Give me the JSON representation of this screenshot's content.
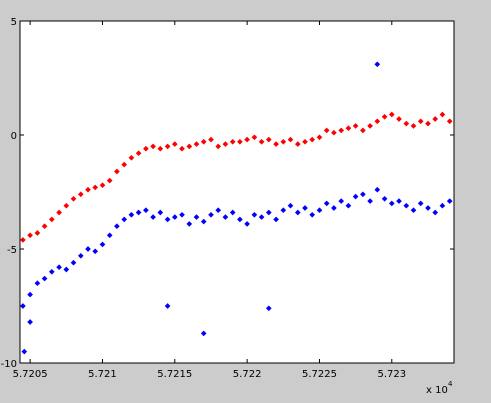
{
  "chart_data": {
    "type": "scatter",
    "title": "",
    "xlabel": "",
    "ylabel": "",
    "x_multiplier_label": "x 10",
    "x_multiplier_exponent": "4",
    "xlim": [
      57204.3,
      57234.3
    ],
    "ylim": [
      -10,
      5
    ],
    "x_ticks": [
      57205,
      57210,
      57215,
      57220,
      57225,
      57230
    ],
    "x_tick_labels": [
      "5.7205",
      "5.721",
      "5.7215",
      "5.722",
      "5.7225",
      "5.723"
    ],
    "y_ticks": [
      -10,
      -5,
      0,
      5
    ],
    "y_tick_labels": [
      "-10",
      "-5",
      "0",
      "5"
    ],
    "grid": false,
    "legend": "none",
    "background": "#ffffff",
    "figure_background": "#cccccc",
    "series": [
      {
        "color": "#ff0000",
        "x": [
          57204.5,
          57205.0,
          57205.5,
          57206.0,
          57206.5,
          57207.0,
          57207.5,
          57208.0,
          57208.5,
          57209.0,
          57209.5,
          57210.0,
          57210.5,
          57211.0,
          57211.5,
          57212.0,
          57212.5,
          57213.0,
          57213.5,
          57214.0,
          57214.5,
          57215.0,
          57215.5,
          57216.0,
          57216.5,
          57217.0,
          57217.5,
          57218.0,
          57218.5,
          57219.0,
          57219.5,
          57220.0,
          57220.5,
          57221.0,
          57221.5,
          57222.0,
          57222.5,
          57223.0,
          57223.5,
          57224.0,
          57224.5,
          57225.0,
          57225.5,
          57226.0,
          57226.5,
          57227.0,
          57227.5,
          57228.0,
          57228.5,
          57229.0,
          57229.5,
          57230.0,
          57230.5,
          57231.0,
          57231.5,
          57232.0,
          57232.5,
          57233.0,
          57233.5,
          57234.0
        ],
        "y": [
          -4.6,
          -4.4,
          -4.3,
          -4.0,
          -3.7,
          -3.4,
          -3.1,
          -2.8,
          -2.6,
          -2.4,
          -2.3,
          -2.2,
          -2.0,
          -1.6,
          -1.3,
          -1.0,
          -0.8,
          -0.6,
          -0.5,
          -0.6,
          -0.5,
          -0.4,
          -0.6,
          -0.5,
          -0.4,
          -0.3,
          -0.2,
          -0.5,
          -0.4,
          -0.3,
          -0.3,
          -0.2,
          -0.1,
          -0.3,
          -0.2,
          -0.4,
          -0.3,
          -0.2,
          -0.4,
          -0.3,
          -0.2,
          -0.1,
          0.2,
          0.1,
          0.2,
          0.3,
          0.4,
          0.2,
          0.4,
          0.6,
          0.8,
          0.9,
          0.7,
          0.5,
          0.4,
          0.6,
          0.5,
          0.7,
          0.9,
          0.6
        ]
      },
      {
        "color": "#0000ff",
        "x": [
          57204.5,
          57205.0,
          57205.5,
          57206.0,
          57206.5,
          57207.0,
          57207.5,
          57208.0,
          57208.5,
          57209.0,
          57209.5,
          57210.0,
          57210.5,
          57211.0,
          57211.5,
          57212.0,
          57212.5,
          57213.0,
          57213.5,
          57214.0,
          57214.5,
          57215.0,
          57215.5,
          57216.0,
          57216.5,
          57217.0,
          57217.5,
          57218.0,
          57218.5,
          57219.0,
          57219.5,
          57220.0,
          57220.5,
          57221.0,
          57221.5,
          57222.0,
          57222.5,
          57223.0,
          57223.5,
          57224.0,
          57224.5,
          57225.0,
          57225.5,
          57226.0,
          57226.5,
          57227.0,
          57227.5,
          57228.0,
          57228.5,
          57229.0,
          57229.5,
          57230.0,
          57230.5,
          57231.0,
          57231.5,
          57232.0,
          57232.5,
          57233.0,
          57233.5,
          57234.0
        ],
        "y": [
          -7.5,
          -7.0,
          -6.5,
          -6.3,
          -6.0,
          -5.8,
          -5.9,
          -5.6,
          -5.3,
          -5.0,
          -5.1,
          -4.8,
          -4.4,
          -4.0,
          -3.7,
          -3.5,
          -3.4,
          -3.3,
          -3.6,
          -3.4,
          -3.7,
          -3.6,
          -3.5,
          -3.9,
          -3.6,
          -3.8,
          -3.5,
          -3.3,
          -3.6,
          -3.4,
          -3.7,
          -3.9,
          -3.5,
          -3.6,
          -3.4,
          -3.7,
          -3.3,
          -3.1,
          -3.4,
          -3.2,
          -3.5,
          -3.3,
          -3.0,
          -3.2,
          -2.9,
          -3.1,
          -2.7,
          -2.6,
          -2.9,
          -2.4,
          -2.8,
          -3.0,
          -2.9,
          -3.1,
          -3.3,
          -3.0,
          -3.2,
          -3.4,
          -3.1,
          -2.9
        ]
      }
    ],
    "outliers": {
      "color": "#0000ff",
      "x": [
        57229.0,
        57217.0,
        57221.5,
        57205.0,
        57214.5,
        57204.6
      ],
      "y": [
        3.1,
        -8.7,
        -7.6,
        -8.2,
        -7.5,
        -9.5
      ]
    }
  }
}
